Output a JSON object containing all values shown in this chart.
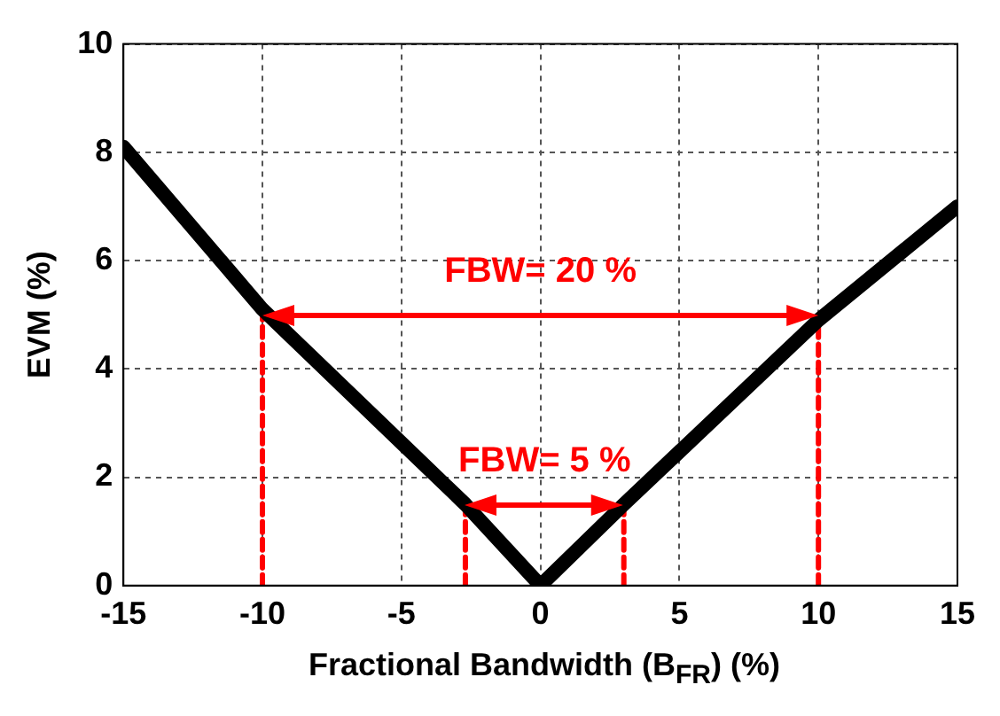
{
  "chart_data": {
    "type": "line",
    "xlabel": "Fractional Bandwidth (B$_{FR}$) (%)",
    "ylabel": "EVM (%)",
    "xlim": [
      -15,
      15
    ],
    "xticks": [
      -15,
      -10,
      -5,
      0,
      5,
      10,
      15
    ],
    "ylim": [
      0,
      10
    ],
    "yticks": [
      0,
      2,
      4,
      6,
      8,
      10
    ],
    "grid": true,
    "marker": "none",
    "series": [
      {
        "x": [
          -15,
          -10,
          -2.7,
          0,
          3,
          10,
          15
        ],
        "values": [
          8.1,
          5.1,
          1.5,
          0,
          1.5,
          4.9,
          7
        ],
        "color": "#000000"
      },
      {
        "x": [
          -10,
          -10
        ],
        "values": [
          0,
          5.1
        ],
        "color": "#ff0000",
        "line_style": "dashed"
      },
      {
        "x": [
          10,
          10
        ],
        "values": [
          0,
          4.9
        ],
        "color": "#ff0000",
        "line_style": "dashed"
      },
      {
        "x": [
          -2.7,
          -2.7
        ],
        "values": [
          0,
          1.5
        ],
        "color": "#ff0000",
        "line_style": "dashed"
      },
      {
        "x": [
          3,
          3
        ],
        "values": [
          0,
          1.5
        ],
        "color": "#ff0000",
        "line_style": "dashed"
      }
    ],
    "annotations": [
      "FBW= 20 %",
      "FBW= 5 %"
    ]
  }
}
